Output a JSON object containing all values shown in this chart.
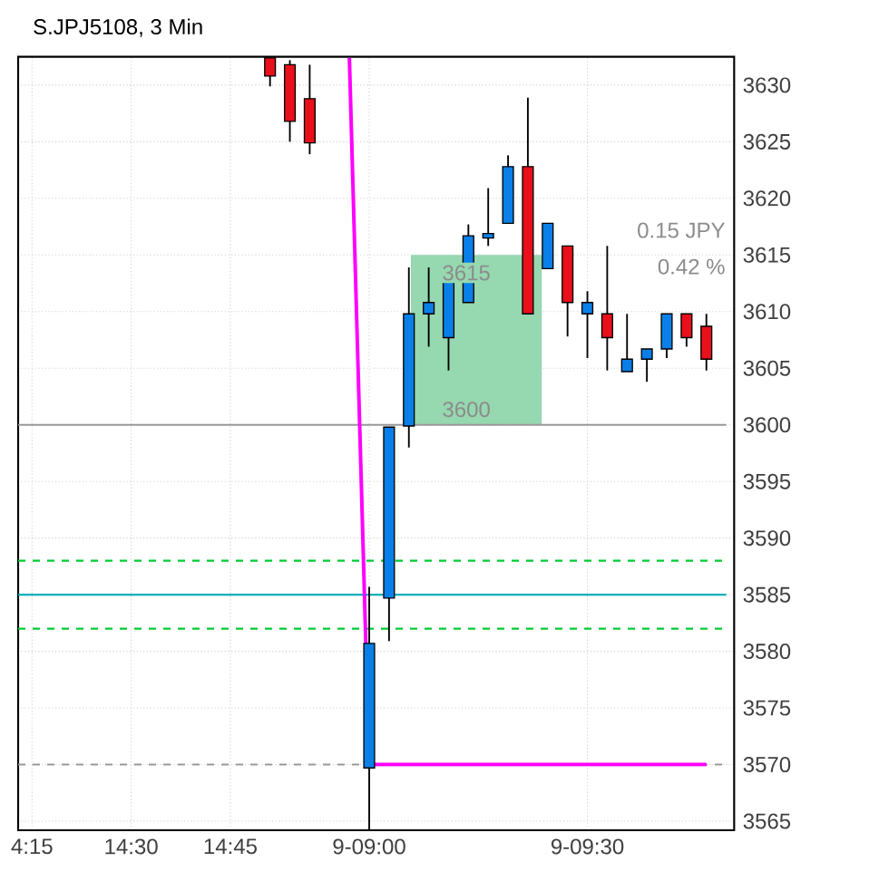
{
  "chart_data": {
    "type": "candlestick",
    "title": "S.JPJ5108, 3 Min",
    "categories": [
      "4:15",
      null,
      null,
      null,
      null,
      "14:30",
      null,
      null,
      null,
      null,
      "14:45",
      null,
      null,
      null,
      null,
      null,
      null,
      "9-09:00",
      null,
      null,
      null,
      null,
      null,
      null,
      null,
      null,
      null,
      null,
      "9-09:30",
      null,
      null,
      null,
      null,
      null,
      null,
      null
    ],
    "ohlc": [
      null,
      null,
      null,
      null,
      null,
      null,
      null,
      null,
      null,
      null,
      null,
      null,
      [
        3632.4,
        3632.4,
        3629.9,
        3630.8
      ],
      [
        3631.8,
        3632.2,
        3625,
        3626.8
      ],
      [
        3628.8,
        3631.8,
        3623.9,
        3624.9
      ],
      null,
      null,
      [
        3569.7,
        3585.7,
        3564.2,
        3580.7
      ],
      [
        3584.7,
        3599.8,
        3580.9,
        3599.8
      ],
      [
        3599.9,
        3613.9,
        3598,
        3609.8
      ],
      [
        3609.8,
        3613.9,
        3606.9,
        3610.8
      ],
      [
        3607.7,
        3612.7,
        3604.8,
        3612.7
      ],
      [
        3610.8,
        3617.7,
        3610.8,
        3616.7
      ],
      [
        3616.5,
        3620.9,
        3615.8,
        3616.9
      ],
      [
        3617.8,
        3623.8,
        3617.8,
        3622.8
      ],
      [
        3622.8,
        3628.9,
        3609.8,
        3609.8
      ],
      [
        3613.8,
        3617.8,
        3613.8,
        3617.8
      ],
      [
        3615.8,
        3615.8,
        3607.8,
        3610.8
      ],
      [
        3609.8,
        3611.8,
        3605.9,
        3610.8
      ],
      [
        3609.8,
        3615.8,
        3604.8,
        3607.7
      ],
      [
        3604.7,
        3609.8,
        3604.7,
        3605.8
      ],
      [
        3605.8,
        3606.7,
        3603.8,
        3606.7
      ],
      [
        3606.7,
        3609.8,
        3605.9,
        3609.8
      ],
      [
        3609.8,
        3609.8,
        3606.9,
        3607.7
      ],
      [
        3608.7,
        3609.8,
        3604.8,
        3605.8
      ],
      null
    ],
    "colors": [
      null,
      null,
      null,
      null,
      null,
      null,
      null,
      null,
      null,
      null,
      null,
      null,
      "#e8101a",
      "#e8101a",
      "#e8101a",
      null,
      null,
      "#0a7fe8",
      "#0a7fe8",
      "#0a7fe8",
      "#0a7fe8",
      "#0a7fe8",
      "#0a7fe8",
      "#0a7fe8",
      "#0a7fe8",
      "#e8101a",
      "#0a7fe8",
      "#e8101a",
      "#0a7fe8",
      "#e8101a",
      "#0a7fe8",
      "#0a7fe8",
      "#0a7fe8",
      "#e8101a",
      "#e8101a",
      null
    ],
    "series": [
      {
        "type": "line",
        "color": "#ff00ff",
        "values": [
          null,
          null,
          null,
          null,
          null,
          null,
          null,
          null,
          null,
          null,
          null,
          null,
          null,
          null,
          null,
          null,
          3632.4,
          3570,
          3570,
          3570,
          3570,
          3570,
          3570,
          3570,
          3570,
          3570,
          3570,
          3570,
          3570,
          3570,
          3570,
          3570,
          3570,
          3570,
          3570,
          null
        ]
      }
    ],
    "ylim": [
      3564.2,
      3632.5
    ],
    "yticks": [
      3565,
      3570,
      3575,
      3580,
      3585,
      3590,
      3595,
      3600,
      3605,
      3610,
      3615,
      3620,
      3625,
      3630
    ],
    "ref_lines": [
      {
        "axis": "y",
        "value": 3588,
        "color": "#00cc33",
        "line_style": "dashed"
      },
      {
        "axis": "y",
        "value": 3582,
        "color": "#00cc33",
        "line_style": "dashed"
      },
      {
        "axis": "y",
        "value": 3585,
        "color": "#00b0b8",
        "line_style": "solid"
      },
      {
        "axis": "y",
        "value": 3600,
        "color": "#999999",
        "line_style": "solid"
      },
      {
        "axis": "y",
        "value": 3570,
        "color": "#999999",
        "line_style": "dashed"
      }
    ],
    "bands": [
      {
        "axis": "y",
        "from": 3600,
        "to": 3615,
        "color": "#96d8b0"
      }
    ],
    "annotations": [
      {
        "text": "3615",
        "y": 3615
      },
      {
        "text": "3600",
        "y": 3600
      },
      "0.15 JPY",
      "0.42 %"
    ],
    "grid": true
  }
}
